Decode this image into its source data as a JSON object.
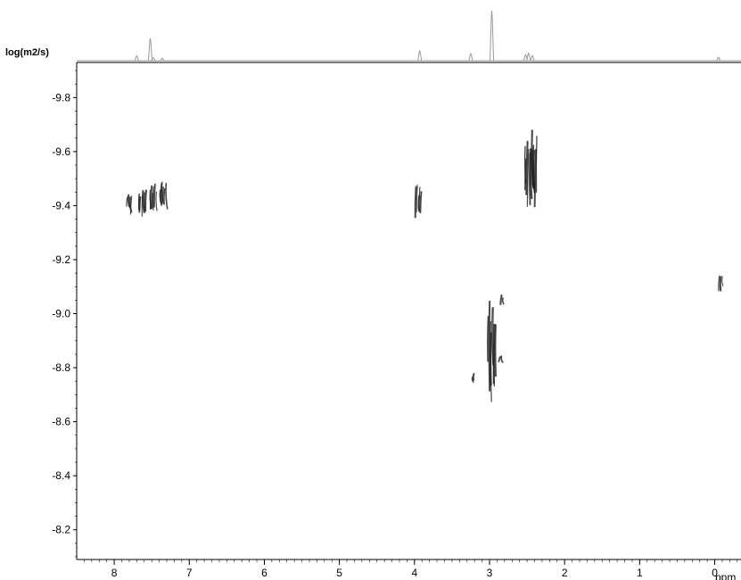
{
  "chart_data": {
    "type": "scatter",
    "title": "",
    "ylabel": "log(m2/s)",
    "xlabel": "ppm",
    "xlim": [
      8.5,
      -0.35
    ],
    "ylim": [
      -9.93,
      -8.09
    ],
    "x_ticks": [
      8,
      7,
      6,
      5,
      4,
      3,
      2,
      1,
      0
    ],
    "x_tick_labels": [
      "8",
      "7",
      "6",
      "5",
      "4",
      "3",
      "2",
      "1",
      "0"
    ],
    "y_ticks": [
      -9.8,
      -9.6,
      -9.4,
      -9.2,
      -9.0,
      -8.8,
      -8.6,
      -8.4,
      -8.2
    ],
    "y_tick_labels": [
      "-9.8",
      "-9.6",
      "-9.4",
      "-9.2",
      "-9.0",
      "-8.8",
      "-8.6",
      "-8.4",
      "-8.2"
    ],
    "grid": false,
    "colors": {
      "contour": "#1a1a1a",
      "spectrum": "#9a9a9a",
      "axis": "#000000"
    },
    "series": [
      {
        "points": [
          {
            "x": 7.8,
            "y": -9.41,
            "spread": 0.06,
            "height": 0.07,
            "strands": 4
          },
          {
            "x": 7.62,
            "y": -9.41,
            "spread": 0.1,
            "height": 0.08,
            "strands": 6
          },
          {
            "x": 7.48,
            "y": -9.42,
            "spread": 0.08,
            "height": 0.11,
            "strands": 6
          },
          {
            "x": 7.35,
            "y": -9.44,
            "spread": 0.08,
            "height": 0.1,
            "strands": 6
          },
          {
            "x": 3.94,
            "y": -9.42,
            "spread": 0.07,
            "height": 0.12,
            "strands": 5
          },
          {
            "x": 2.48,
            "y": -9.52,
            "spread": 0.1,
            "height": 0.23,
            "strands": 7
          },
          {
            "x": 2.4,
            "y": -9.54,
            "spread": 0.06,
            "height": 0.22,
            "strands": 5
          },
          {
            "x": 2.97,
            "y": -8.88,
            "spread": 0.1,
            "height": 0.35,
            "strands": 8
          },
          {
            "x": 2.83,
            "y": -9.05,
            "spread": 0.02,
            "height": 0.04,
            "strands": 2
          },
          {
            "x": 3.22,
            "y": -8.76,
            "spread": 0.02,
            "height": 0.04,
            "strands": 2
          },
          {
            "x": 2.85,
            "y": -8.83,
            "spread": 0.02,
            "height": 0.03,
            "strands": 2
          },
          {
            "x": -0.08,
            "y": -9.11,
            "spread": 0.04,
            "height": 0.06,
            "strands": 3
          }
        ]
      }
    ],
    "projection_spectrum": [
      {
        "x": 7.7,
        "h": 0.1
      },
      {
        "x": 7.52,
        "h": 0.45
      },
      {
        "x": 7.48,
        "h": 0.06
      },
      {
        "x": 7.36,
        "h": 0.05
      },
      {
        "x": 3.93,
        "h": 0.2
      },
      {
        "x": 3.25,
        "h": 0.14
      },
      {
        "x": 2.97,
        "h": 1.0
      },
      {
        "x": 2.52,
        "h": 0.12
      },
      {
        "x": 2.48,
        "h": 0.15
      },
      {
        "x": 2.43,
        "h": 0.1
      },
      {
        "x": -0.05,
        "h": 0.07
      }
    ]
  }
}
